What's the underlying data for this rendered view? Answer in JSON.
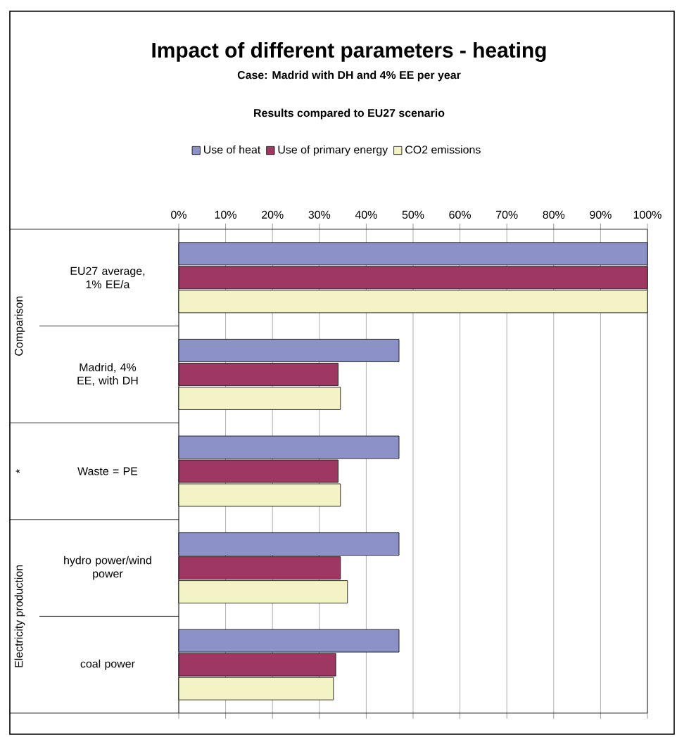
{
  "chart_data": {
    "type": "bar",
    "orientation": "horizontal",
    "title": "Impact of different parameters - heating",
    "subtitle": "Case: Madrid with DH and 4% EE per year",
    "annotations": [
      "Results compared to EU27 scenario",
      "Comparison",
      "*",
      "Electricity production"
    ],
    "categories": [
      "EU27 average, 1% EE/a",
      "Madrid, 4% EE, with DH",
      "Waste = PE",
      "hydro power/wind power",
      "coal power"
    ],
    "series": [
      {
        "name": "Use of heat",
        "color": "#8c91c8",
        "values": [
          100,
          47,
          47,
          47,
          47
        ]
      },
      {
        "name": "Use of primary energy",
        "color": "#9e3863",
        "values": [
          100,
          34,
          34,
          34.5,
          33.5
        ]
      },
      {
        "name": "CO2 emissions",
        "color": "#f3f3c6",
        "values": [
          100,
          34.5,
          34.5,
          36,
          33
        ]
      }
    ],
    "xlim": [
      0,
      100
    ],
    "xticks": [
      {
        "value": 0,
        "label": "0%"
      },
      {
        "value": 10,
        "label": "10%"
      },
      {
        "value": 20,
        "label": "20%"
      },
      {
        "value": 30,
        "label": "30%"
      },
      {
        "value": 40,
        "label": "40%"
      },
      {
        "value": 50,
        "label": "50%"
      },
      {
        "value": 60,
        "label": "60%"
      },
      {
        "value": 70,
        "label": "70%"
      },
      {
        "value": 80,
        "label": "80%"
      },
      {
        "value": 90,
        "label": "90%"
      },
      {
        "value": 100,
        "label": "100%"
      }
    ],
    "grid": "x",
    "legend": "top"
  }
}
